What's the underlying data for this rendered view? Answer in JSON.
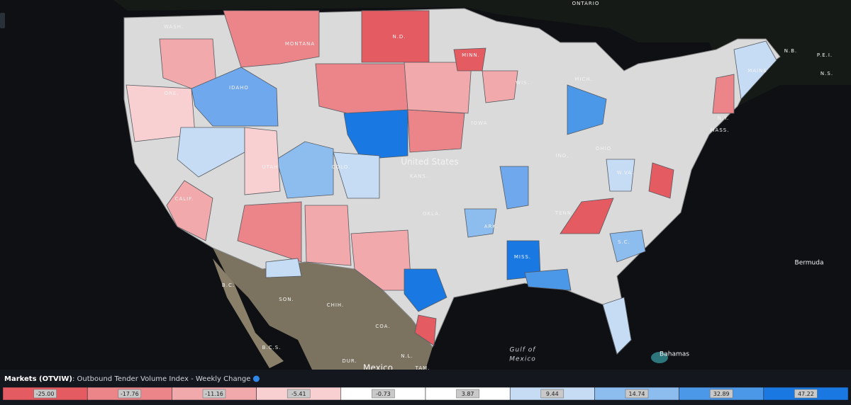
{
  "map": {
    "labels": [
      "ONTARIO",
      "WASH.",
      "MONTANA",
      "N.D.",
      "MINN.",
      "IDAHO",
      "ORE.",
      "WIS.",
      "MICH.",
      "MAINE",
      "N.B.",
      "P.E.I.",
      "N.S.",
      "IOWA",
      "United States",
      "KANS.",
      "COLO.",
      "UTAH",
      "CALIF.",
      "W.VA.",
      "IND.",
      "OHIO",
      "N.Y.",
      "MASS.",
      "TENN.",
      "OKLA.",
      "ARK.",
      "S.C.",
      "MISS.",
      "Bermuda",
      "B.C.",
      "SON.",
      "CHIH.",
      "COA.",
      "N.L.",
      "B.C.S.",
      "DUR.",
      "TAM.",
      "Gulf of",
      "Mexico",
      "Bahamas",
      "Mexico"
    ]
  },
  "legend": {
    "title": "Markets (OTVIW)",
    "subtitle": ": Outbound Tender Volume Index - Weekly Change",
    "items": [
      {
        "label": "-25.00",
        "color": "#e45b62"
      },
      {
        "label": "-17.76",
        "color": "#ec8589"
      },
      {
        "label": "-11.16",
        "color": "#f2a9ac"
      },
      {
        "label": "-5.41",
        "color": "#f8d0d2"
      },
      {
        "label": "-0.73",
        "color": "#ffffff"
      },
      {
        "label": "3.87",
        "color": "#ffffff"
      },
      {
        "label": "9.44",
        "color": "#c6dcf5"
      },
      {
        "label": "14.74",
        "color": "#8dbcef"
      },
      {
        "label": "32.89",
        "color": "#4b97e8"
      },
      {
        "label": "47.22",
        "color": "#1a78e2"
      }
    ]
  }
}
